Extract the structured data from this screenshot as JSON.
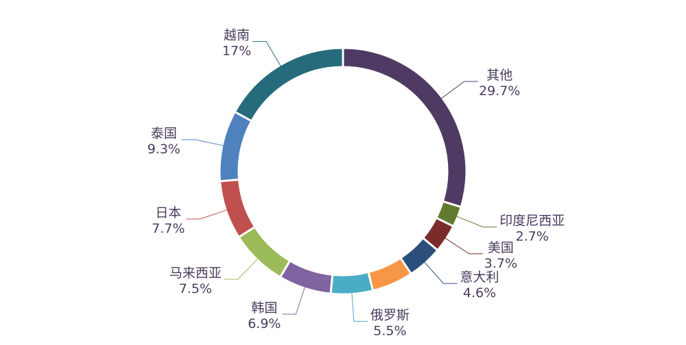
{
  "chart_data": {
    "type": "pie",
    "variant": "donut",
    "title": "",
    "legend": "none",
    "slices": [
      {
        "name": "其他",
        "label": "29.7%",
        "value": 29.7,
        "color": "#4e3a62"
      },
      {
        "name": "印度尼西亚",
        "label": "2.7%",
        "value": 2.7,
        "color": "#627a30"
      },
      {
        "name": "美国",
        "label": "3.7%",
        "value": 3.7,
        "color": "#7a2c2a"
      },
      {
        "name": "意大利",
        "label": "4.6%",
        "value": 4.6,
        "color": "#2c4e7a"
      },
      {
        "name": "",
        "label": "",
        "value": 5.4,
        "color": "#f79646"
      },
      {
        "name": "俄罗斯",
        "label": "5.5%",
        "value": 5.5,
        "color": "#4bacc6"
      },
      {
        "name": "韩国",
        "label": "6.9%",
        "value": 6.9,
        "color": "#8064a2"
      },
      {
        "name": "马来西亚",
        "label": "7.5%",
        "value": 7.5,
        "color": "#9bbb59"
      },
      {
        "name": "日本",
        "label": "7.7%",
        "value": 7.7,
        "color": "#c0504d"
      },
      {
        "name": "泰国",
        "label": "9.3%",
        "value": 9.3,
        "color": "#4f81bd"
      },
      {
        "name": "越南",
        "label": "17%",
        "value": 17,
        "color": "#266b7b"
      }
    ]
  }
}
